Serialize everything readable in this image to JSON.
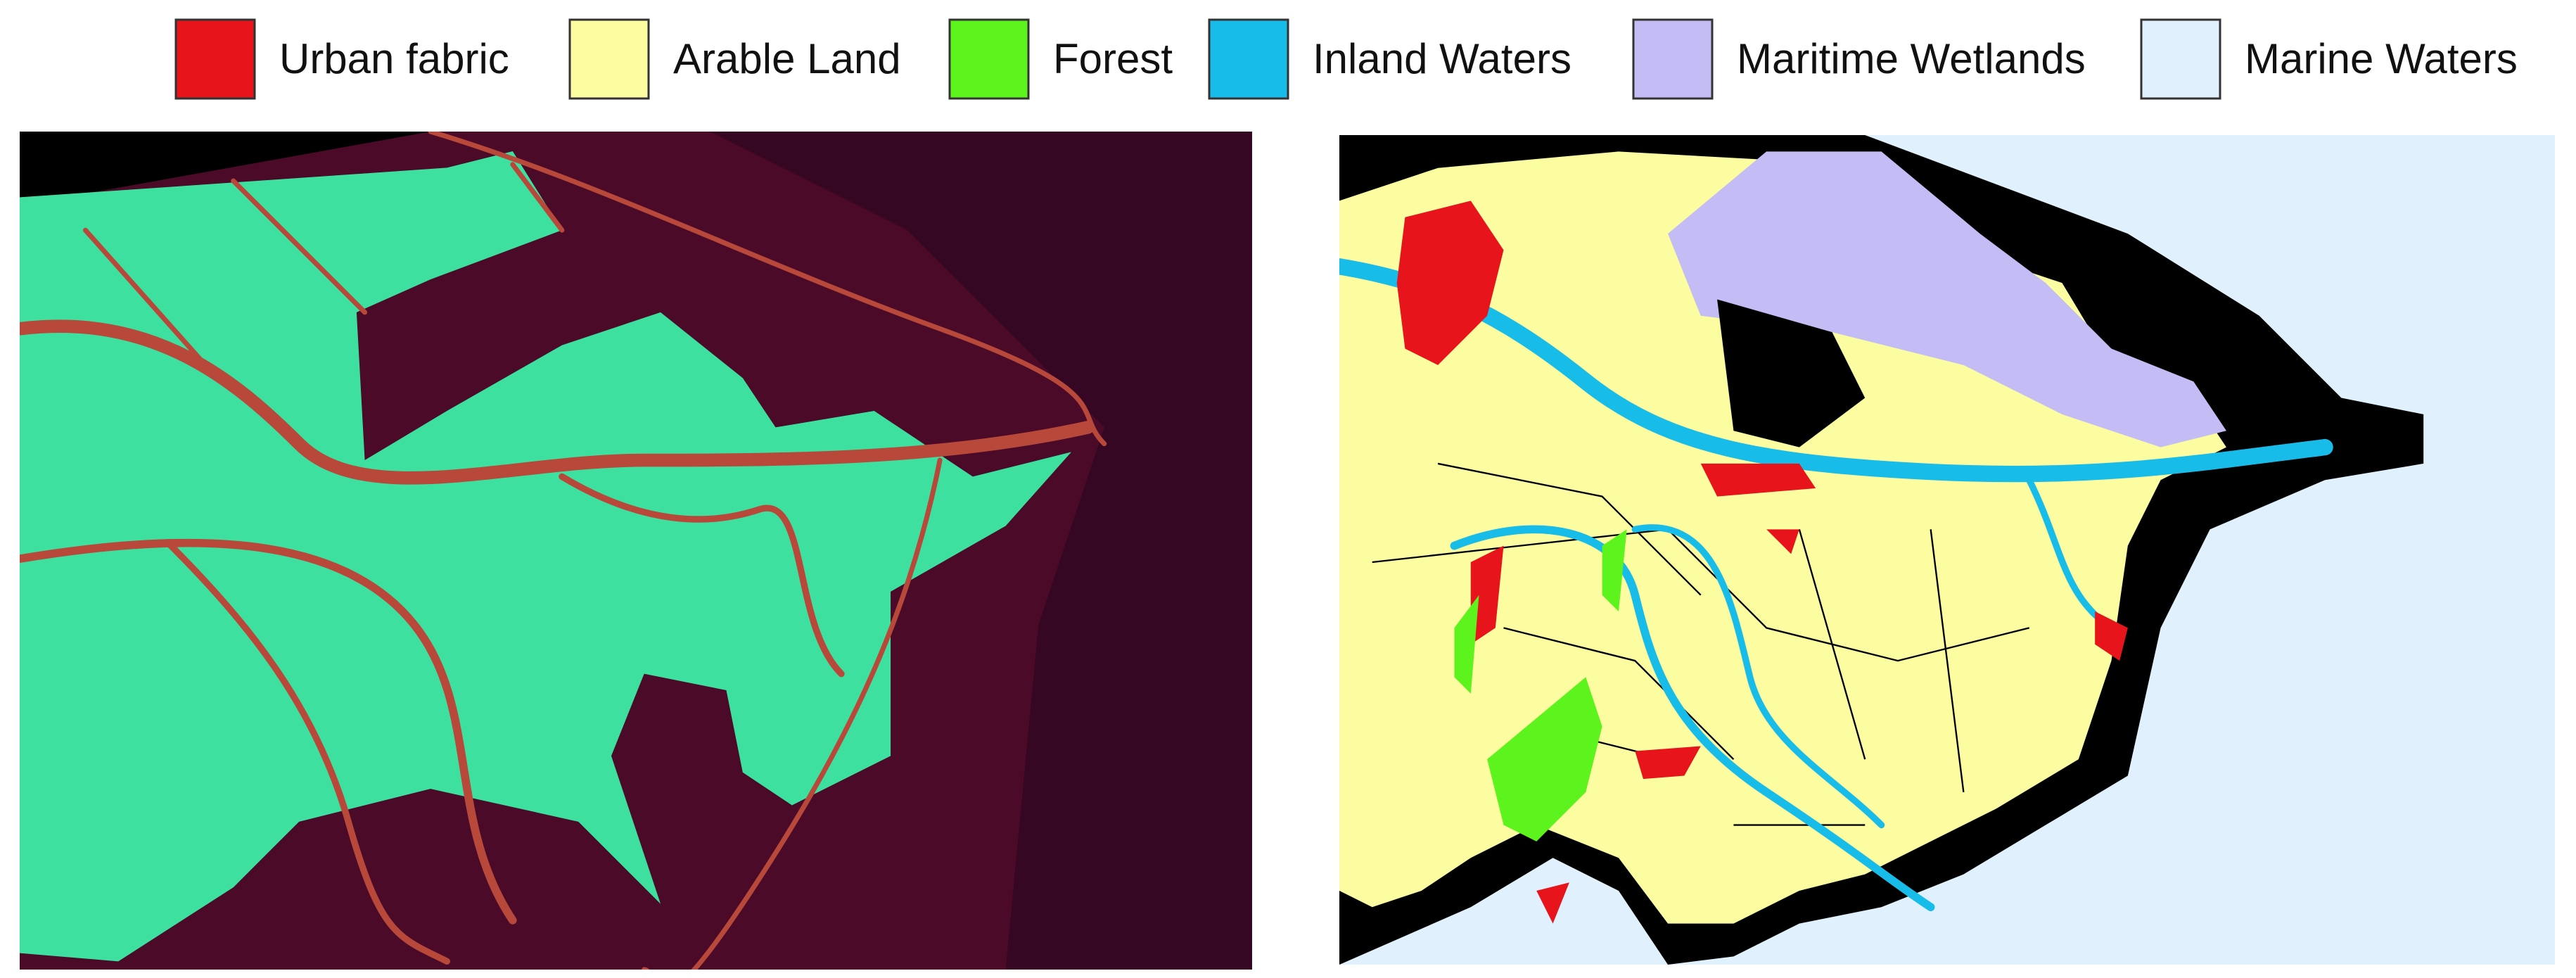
{
  "legend": {
    "items": [
      {
        "label": "Urban fabric",
        "color": "#e8141c"
      },
      {
        "label": "Arable Land",
        "color": "#fcfca0"
      },
      {
        "label": "Forest",
        "color": "#5cf41c"
      },
      {
        "label": "Inland Waters",
        "color": "#18bce8"
      },
      {
        "label": "Maritime Wetlands",
        "color": "#c4bcf4"
      },
      {
        "label": "Marine Waters",
        "color": "#e0f0fc"
      }
    ]
  }
}
